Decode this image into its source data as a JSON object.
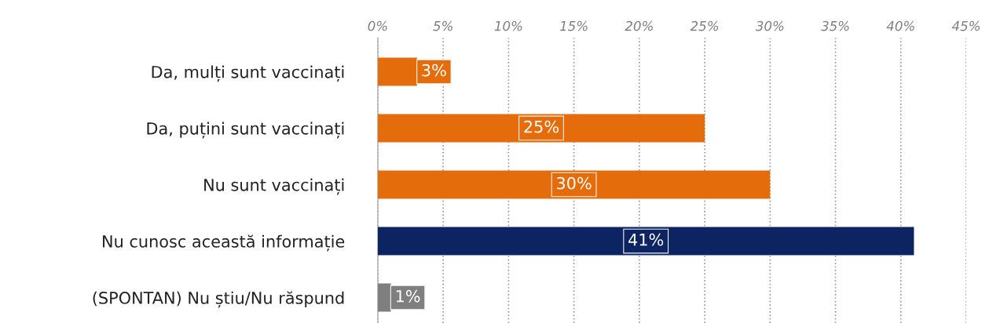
{
  "chart_data": {
    "type": "bar",
    "orientation": "horizontal",
    "categories": [
      "Da, mulți sunt vaccinați",
      "Da, puțini sunt vaccinați",
      "Nu sunt vaccinați",
      "Nu cunosc această informație",
      "(SPONTAN) Nu știu/Nu răspund"
    ],
    "values": [
      3,
      25,
      30,
      41,
      1
    ],
    "colors": [
      "#e46c0a",
      "#e46c0a",
      "#e46c0a",
      "#0c2461",
      "#7f7f7f"
    ],
    "value_labels": [
      "3%",
      "25%",
      "30%",
      "41%",
      "1%"
    ],
    "xlim": [
      0,
      45
    ],
    "xticks": [
      {
        "value": 0,
        "label": "0%"
      },
      {
        "value": 5,
        "label": "5%"
      },
      {
        "value": 10,
        "label": "10%"
      },
      {
        "value": 15,
        "label": "15%"
      },
      {
        "value": 20,
        "label": "20%"
      },
      {
        "value": 25,
        "label": "25%"
      },
      {
        "value": 30,
        "label": "30%"
      },
      {
        "value": 35,
        "label": "35%"
      },
      {
        "value": 40,
        "label": "40%"
      },
      {
        "value": 45,
        "label": "45%"
      }
    ],
    "grid": "x",
    "legend": false
  }
}
